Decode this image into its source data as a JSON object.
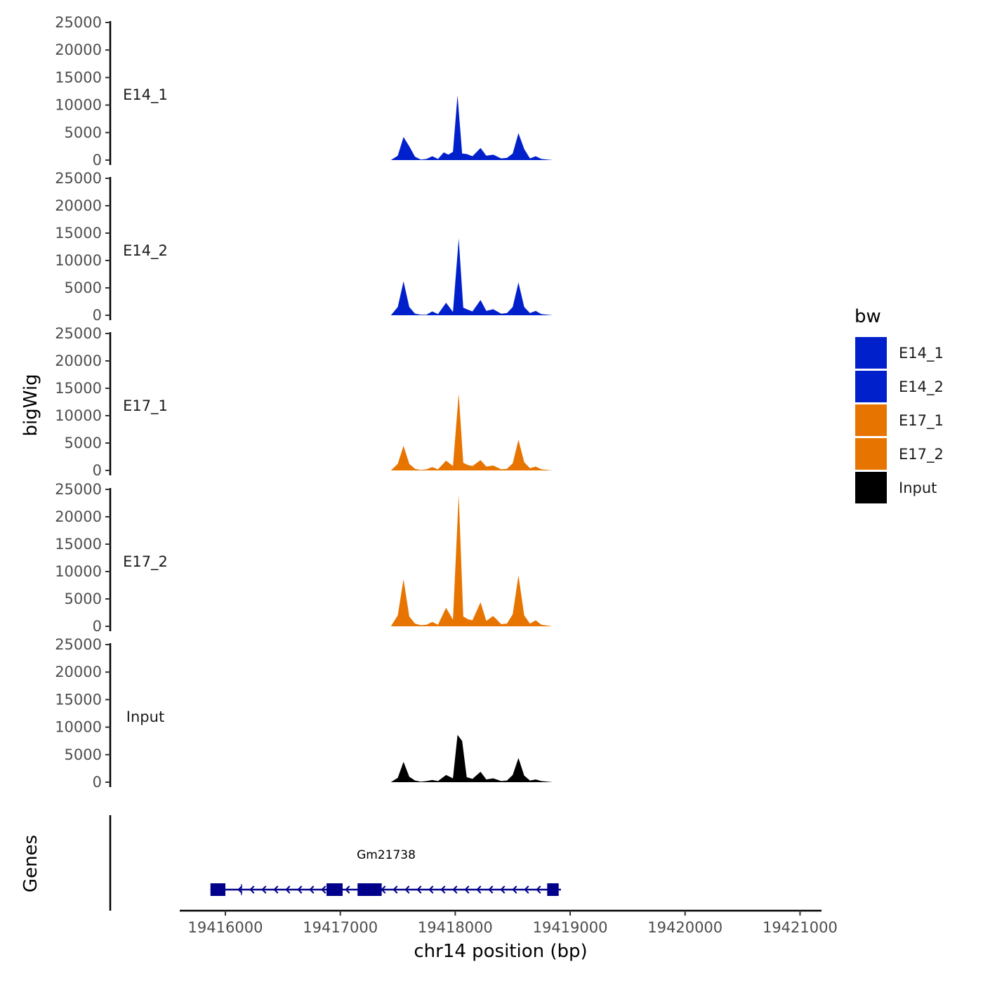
{
  "chart_data": {
    "type": "area",
    "xlabel": "chr14 position (bp)",
    "ylabel": "bigWig",
    "genes_label": "Genes",
    "xlim": [
      19415600,
      19421150
    ],
    "x_ticks": [
      19416000,
      19417000,
      19418000,
      19419000,
      19420000,
      19421000
    ],
    "y_ticks": [
      0,
      5000,
      10000,
      15000,
      20000,
      25000
    ],
    "ylim": [
      0,
      25000
    ],
    "colors": {
      "blue": "#0020cc",
      "orange": "#e87400",
      "black": "#000000",
      "gene": "#00008b"
    },
    "legend": {
      "title": "bw",
      "entries": [
        {
          "label": "E14_1",
          "color": "#0020cc"
        },
        {
          "label": "E14_2",
          "color": "#0020cc"
        },
        {
          "label": "E17_1",
          "color": "#e87400"
        },
        {
          "label": "E17_2",
          "color": "#e87400"
        },
        {
          "label": "Input",
          "color": "#000000"
        }
      ]
    },
    "tracks": [
      {
        "name": "E14_1",
        "color": "#0020cc",
        "x": [
          19417440,
          19417500,
          19417550,
          19417600,
          19417650,
          19417700,
          19417750,
          19417800,
          19417850,
          19417900,
          19417940,
          19417980,
          19418020,
          19418060,
          19418100,
          19418150,
          19418220,
          19418270,
          19418330,
          19418400,
          19418450,
          19418500,
          19418550,
          19418600,
          19418650,
          19418700,
          19418750,
          19418850
        ],
        "y": [
          0,
          800,
          4200,
          2500,
          600,
          100,
          200,
          700,
          200,
          1400,
          1000,
          1500,
          11800,
          1200,
          1100,
          700,
          2200,
          800,
          1000,
          300,
          400,
          1200,
          4900,
          2000,
          300,
          700,
          200,
          0
        ]
      },
      {
        "name": "E14_2",
        "color": "#0020cc",
        "x": [
          19417440,
          19417500,
          19417550,
          19417600,
          19417650,
          19417700,
          19417750,
          19417800,
          19417850,
          19417920,
          19417980,
          19418030,
          19418070,
          19418100,
          19418150,
          19418220,
          19418270,
          19418330,
          19418400,
          19418450,
          19418500,
          19418550,
          19418600,
          19418650,
          19418700,
          19418750,
          19418850
        ],
        "y": [
          0,
          1500,
          6200,
          1500,
          300,
          100,
          100,
          700,
          200,
          2300,
          600,
          14000,
          1400,
          1100,
          700,
          2800,
          800,
          1100,
          300,
          400,
          1500,
          6000,
          1500,
          400,
          800,
          200,
          0
        ]
      },
      {
        "name": "E17_1",
        "color": "#e87400",
        "x": [
          19417440,
          19417500,
          19417550,
          19417600,
          19417650,
          19417700,
          19417750,
          19417800,
          19417850,
          19417920,
          19417980,
          19418030,
          19418070,
          19418110,
          19418150,
          19418220,
          19418270,
          19418330,
          19418400,
          19418450,
          19418500,
          19418550,
          19418600,
          19418650,
          19418700,
          19418750,
          19418850
        ],
        "y": [
          0,
          1200,
          4500,
          1200,
          300,
          100,
          200,
          600,
          200,
          1800,
          800,
          14000,
          1400,
          1000,
          800,
          1900,
          700,
          900,
          200,
          300,
          1300,
          5600,
          1500,
          400,
          700,
          200,
          0
        ]
      },
      {
        "name": "E17_2",
        "color": "#e87400",
        "x": [
          19417440,
          19417500,
          19417550,
          19417600,
          19417650,
          19417700,
          19417750,
          19417800,
          19417850,
          19417920,
          19417980,
          19418030,
          19418070,
          19418110,
          19418150,
          19418220,
          19418270,
          19418330,
          19418400,
          19418450,
          19418500,
          19418550,
          19418600,
          19418650,
          19418700,
          19418750,
          19418850
        ],
        "y": [
          0,
          2000,
          8600,
          1800,
          500,
          200,
          300,
          800,
          300,
          3400,
          1200,
          24000,
          1800,
          1300,
          1100,
          4400,
          1000,
          1900,
          400,
          500,
          2200,
          9300,
          2000,
          500,
          1100,
          300,
          0
        ]
      },
      {
        "name": "Input",
        "color": "#000000",
        "x": [
          19417440,
          19417500,
          19417550,
          19417600,
          19417650,
          19417700,
          19417750,
          19417800,
          19417850,
          19417920,
          19417980,
          19418020,
          19418060,
          19418100,
          19418150,
          19418220,
          19418270,
          19418330,
          19418400,
          19418450,
          19418500,
          19418550,
          19418600,
          19418650,
          19418700,
          19418750,
          19418850
        ],
        "y": [
          0,
          800,
          3700,
          1000,
          300,
          100,
          200,
          400,
          200,
          1300,
          700,
          8600,
          7500,
          900,
          600,
          1900,
          500,
          700,
          200,
          300,
          1300,
          4400,
          1200,
          300,
          500,
          200,
          0
        ]
      }
    ],
    "gene": {
      "name": "Gm21738",
      "strand": "-",
      "start": 19415870,
      "end": 19418920,
      "exons": [
        [
          19415870,
          19416000
        ],
        [
          19416880,
          19417020
        ],
        [
          19417150,
          19417360
        ],
        [
          19418800,
          19418900
        ]
      ],
      "tick_mark": 19416140
    }
  }
}
